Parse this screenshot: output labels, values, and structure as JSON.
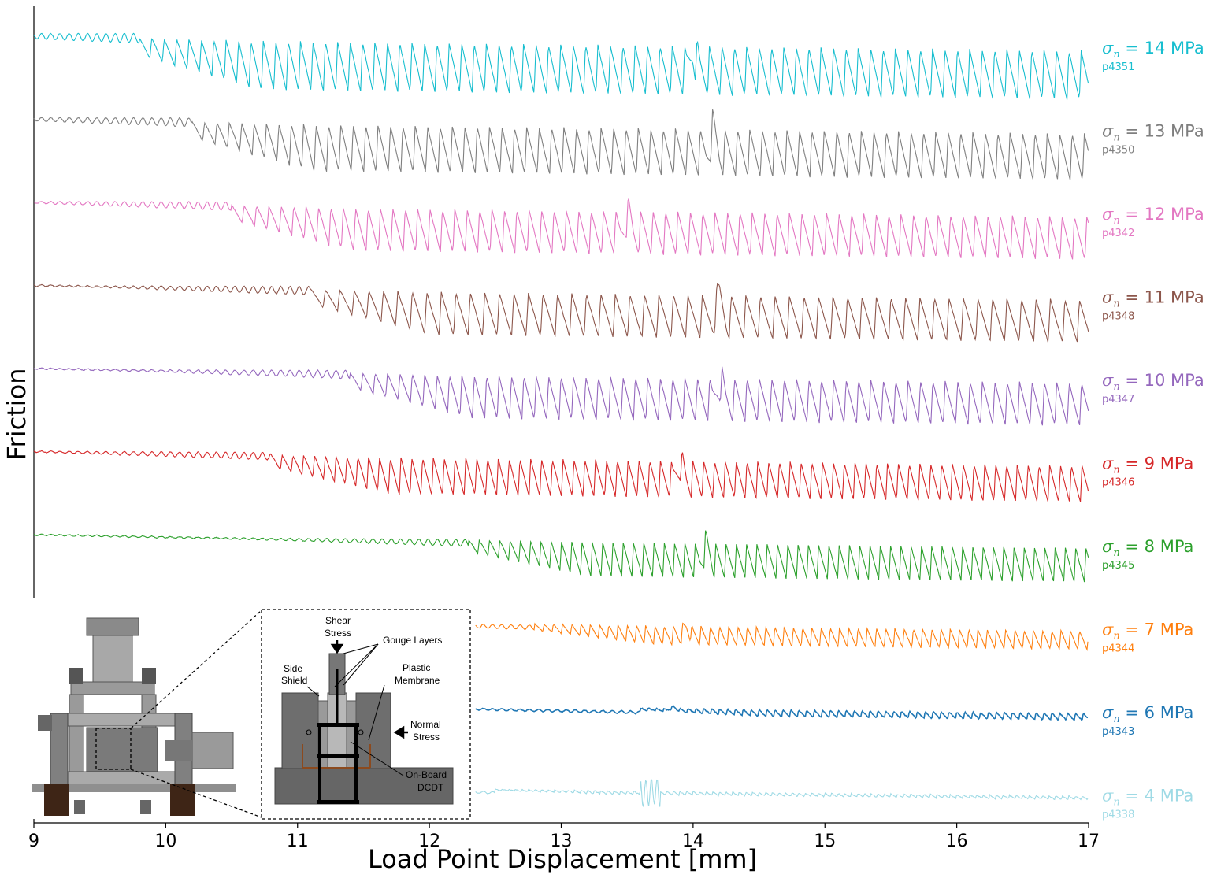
{
  "chart_data": {
    "type": "line",
    "title": "",
    "xlabel": "Load Point Displacement [mm]",
    "ylabel": "Friction",
    "xlim": [
      9,
      17
    ],
    "xticks": [
      "9",
      "10",
      "11",
      "12",
      "13",
      "14",
      "15",
      "16",
      "17"
    ],
    "series": [
      {
        "name": "σn = 14 MPa",
        "stress": "14",
        "experiment": "p4351",
        "color": "#17becf",
        "onset": 9.8,
        "amplitude": 0.82,
        "period": 0.094,
        "large_event": 14.0
      },
      {
        "name": "σn = 13 MPa",
        "stress": "13",
        "experiment": "p4350",
        "color": "#7f7f7f",
        "onset": 10.2,
        "amplitude": 0.78,
        "period": 0.094,
        "large_event": 14.15
      },
      {
        "name": "σn = 12 MPa",
        "stress": "12",
        "experiment": "p4342",
        "color": "#e377c2",
        "onset": 10.5,
        "amplitude": 0.72,
        "period": 0.094,
        "large_event": 13.5
      },
      {
        "name": "σn = 11 MPa",
        "stress": "11",
        "experiment": "p4348",
        "color": "#8c564b",
        "onset": 11.1,
        "amplitude": 0.72,
        "period": 0.11,
        "large_event": 14.2
      },
      {
        "name": "σn = 10 MPa",
        "stress": "10",
        "experiment": "p4347",
        "color": "#9467bd",
        "onset": 11.4,
        "amplitude": 0.72,
        "period": 0.094,
        "large_event": 14.2
      },
      {
        "name": "σn = 9 MPa",
        "stress": "9",
        "experiment": "p4346",
        "color": "#d62728",
        "onset": 10.8,
        "amplitude": 0.62,
        "period": 0.082,
        "large_event": 13.9
      },
      {
        "name": "σn = 8 MPa",
        "stress": "8",
        "experiment": "p4345",
        "color": "#2ca02c",
        "onset": 12.3,
        "amplitude": 0.56,
        "period": 0.078,
        "large_event": 14.1
      },
      {
        "name": "σn = 7 MPa",
        "stress": "7",
        "experiment": "p4344",
        "color": "#ff7f0e",
        "onset": 12.8,
        "amplitude": 0.32,
        "period": 0.07,
        "large_event": 13.95
      },
      {
        "name": "σn = 6 MPa",
        "stress": "6",
        "experiment": "p4343",
        "color": "#1f77b4",
        "onset": 13.6,
        "amplitude": 0.12,
        "period": 0.06,
        "large_event": 13.85
      },
      {
        "name": "σn = 4 MPa",
        "stress": "4",
        "experiment": "p4338",
        "color": "#9edae5",
        "onset": 12.5,
        "amplitude": 0.06,
        "period": 0.05,
        "large_event": 13.7
      }
    ],
    "sigma_symbol": "σ",
    "sigma_subscript": "n",
    "stress_unit": "MPa"
  },
  "inset": {
    "labels": {
      "shear": "Shear",
      "stress": "Stress",
      "gouge_layers": "Gouge Layers",
      "side": "Side",
      "shield": "Shield",
      "plastic": "Plastic",
      "membrane": "Membrane",
      "normal": "Normal",
      "normal_stress": "Stress",
      "on_board": "On-Board",
      "dcdt": "DCDT"
    }
  }
}
